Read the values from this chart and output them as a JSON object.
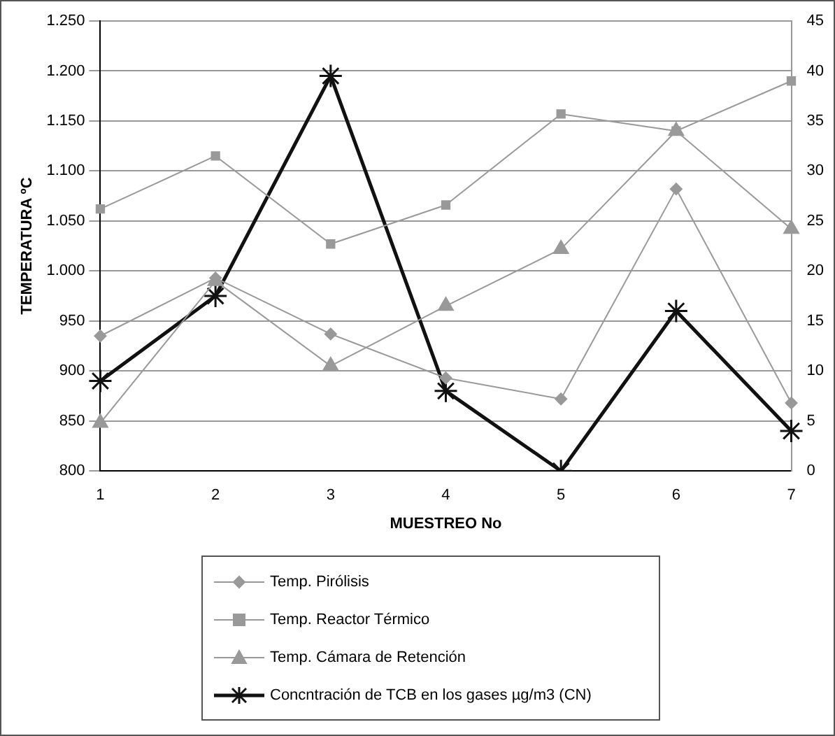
{
  "chart_data": {
    "type": "line",
    "xlabel": "MUESTREO No",
    "ylabel": "TEMPERATURA ºC",
    "categories": [
      "1",
      "2",
      "3",
      "4",
      "5",
      "6",
      "7"
    ],
    "series": [
      {
        "name": "Temp. Pirólisis",
        "color": "#999999",
        "marker": "diamond",
        "values": [
          935,
          993,
          937,
          893,
          872,
          1082,
          868
        ]
      },
      {
        "name": "Temp. Reactor Térmico",
        "color": "#999999",
        "marker": "square",
        "values": [
          1062,
          1115,
          1027,
          1066,
          1157,
          1140,
          1190
        ]
      },
      {
        "name": "Temp. Cámara de Retención",
        "color": "#999999",
        "marker": "triangle",
        "values": [
          848,
          990,
          905,
          965,
          1022,
          1140,
          1042
        ]
      },
      {
        "name": "Concntración de TCB en los gases µg/m3 (CN)",
        "color": "#111111",
        "marker": "cross",
        "axis": "y2",
        "values": [
          9,
          17.5,
          39.5,
          8,
          0,
          16,
          4
        ]
      }
    ],
    "ylim": [
      800,
      1250
    ],
    "yticks": [
      {
        "value": 800,
        "label": "800"
      },
      {
        "value": 850,
        "label": "850"
      },
      {
        "value": 900,
        "label": "900"
      },
      {
        "value": 950,
        "label": "950"
      },
      {
        "value": 1000,
        "label": "1.000"
      },
      {
        "value": 1050,
        "label": "1.050"
      },
      {
        "value": 1100,
        "label": "1.100"
      },
      {
        "value": 1150,
        "label": "1.150"
      },
      {
        "value": 1200,
        "label": "1.200"
      },
      {
        "value": 1250,
        "label": "1.250"
      }
    ],
    "y2lim": [
      0,
      45
    ],
    "y2ticks": [
      0,
      5,
      10,
      15,
      20,
      25,
      30,
      35,
      40,
      45
    ],
    "grid": "y",
    "legend": "bottom",
    "line_style": "solid"
  }
}
